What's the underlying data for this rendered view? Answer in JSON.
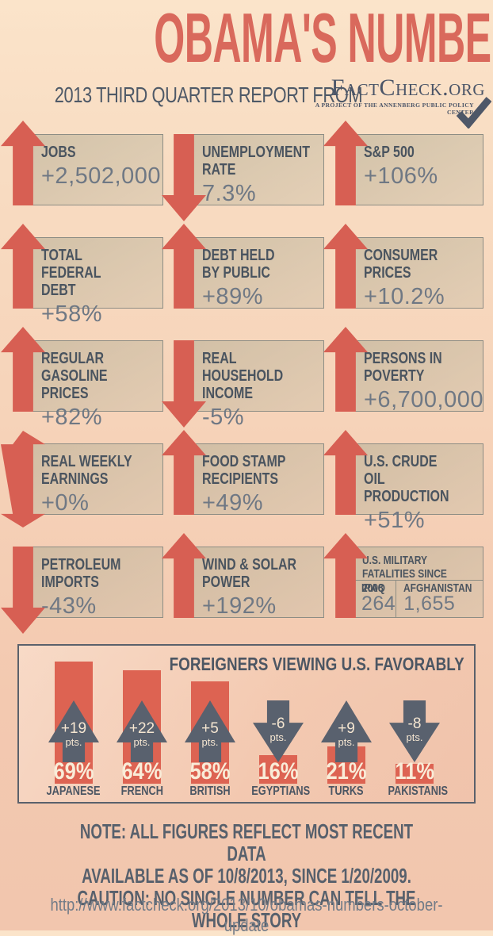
{
  "header": {
    "title": "OBAMA'S NUMBERS",
    "subtitle": "2013 THIRD QUARTER REPORT FROM",
    "logo": {
      "name": "FactCheck.org",
      "tagline": "A PROJECT OF THE ANNENBERG PUBLIC POLICY CENTER"
    }
  },
  "stats": [
    {
      "label": "JOBS",
      "value": "+2,502,000",
      "direction": "up"
    },
    {
      "label": "UNEMPLOYMENT\nRATE",
      "value": "7.3%",
      "direction": "down"
    },
    {
      "label": "S&P 500",
      "value": "+106%",
      "direction": "up"
    },
    {
      "label": "TOTAL FEDERAL\nDEBT",
      "value": "+58%",
      "direction": "up"
    },
    {
      "label": "DEBT HELD\nBY PUBLIC",
      "value": "+89%",
      "direction": "up"
    },
    {
      "label": "CONSUMER\nPRICES",
      "value": "+10.2%",
      "direction": "up"
    },
    {
      "label": "REGULAR GASOLINE\nPRICES",
      "value": "+82%",
      "direction": "up"
    },
    {
      "label": "REAL HOUSEHOLD\nINCOME",
      "value": "-5%",
      "direction": "down"
    },
    {
      "label": "PERSONS IN\nPOVERTY",
      "value": "+6,700,000",
      "direction": "up"
    },
    {
      "label": "REAL WEEKLY\nEARNINGS",
      "value": "+0%",
      "direction": "both"
    },
    {
      "label": "FOOD STAMP\nRECIPIENTS",
      "value": "+49%",
      "direction": "up"
    },
    {
      "label": "U.S. CRUDE OIL\nPRODUCTION",
      "value": "+51%",
      "direction": "up"
    },
    {
      "label": "PETROLEUM\nIMPORTS",
      "value": "-43%",
      "direction": "down"
    },
    {
      "label": "WIND & SOLAR\nPOWER",
      "value": "+192%",
      "direction": "up"
    }
  ],
  "military": {
    "label": "U.S. MILITARY\nFATALITIES SINCE 2008",
    "direction": "up",
    "cells": [
      {
        "country": "IRAQ",
        "value": "264"
      },
      {
        "country": "AFGHANISTAN",
        "value": "1,655"
      }
    ]
  },
  "chart_data": {
    "type": "bar",
    "title": "FOREIGNERS VIEWING U.S. FAVORABLY",
    "categories": [
      "JAPANESE",
      "FRENCH",
      "BRITISH",
      "EGYPTIANS",
      "TURKS",
      "PAKISTANIS"
    ],
    "values": [
      69,
      64,
      58,
      16,
      21,
      11
    ],
    "value_suffix": "%",
    "change_pts": [
      19,
      22,
      5,
      -6,
      9,
      -8
    ],
    "change_suffix": "pts.",
    "ylim": [
      0,
      100
    ],
    "legend_position": "none",
    "grid": false
  },
  "footer": {
    "note": "NOTE:  ALL FIGURES REFLECT MOST RECENT DATA\nAVAILABLE AS OF 10/8/2013, SINCE 1/20/2009.\nCAUTION: NO SINGLE NUMBER CAN TELL THE WHOLE STORY",
    "url": "http://www.factcheck.org/2013/10/obamas-numbers-october-update"
  },
  "colors": {
    "title_salmon": "#d9695c",
    "arrow_salmon": "#d75f53",
    "bar_salmon": "#dd6352",
    "slate_text": "#4c5663",
    "value_gray": "#6f7884",
    "cream_text": "#f9ecd8",
    "background_peach_top": "#fbe4ca",
    "background_peach_bottom": "#f2c6ae",
    "box_tan": "#d8c8ae"
  }
}
